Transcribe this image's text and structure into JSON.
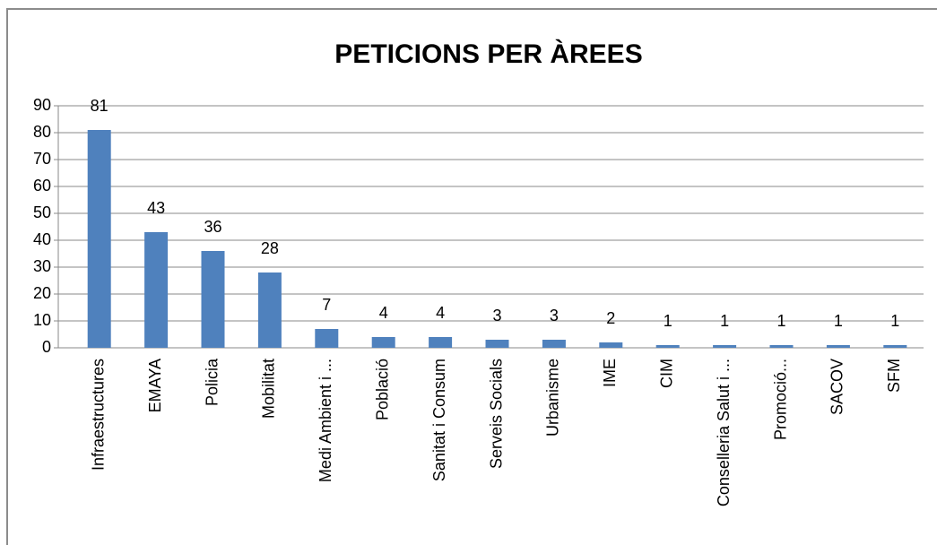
{
  "chart_data": {
    "type": "bar",
    "title": "PETICIONS PER ÀREES",
    "categories": [
      "Infraestructures",
      "EMAYA",
      "Policia",
      "Mobilitat",
      "Medi Ambient i ...",
      "Població",
      "Sanitat i Consum",
      "Serveis Socials",
      "Urbanisme",
      "IME",
      "CIM",
      "Conselleria Salut i ...",
      "Promoció...",
      "SACOV",
      "SFM"
    ],
    "values": [
      81,
      43,
      36,
      28,
      7,
      4,
      4,
      3,
      3,
      2,
      1,
      1,
      1,
      1,
      1
    ],
    "color": "#4f81bd",
    "ylim": [
      0,
      90
    ],
    "yticks": [
      0,
      10,
      20,
      30,
      40,
      50,
      60,
      70,
      80,
      90
    ],
    "grid": true
  }
}
